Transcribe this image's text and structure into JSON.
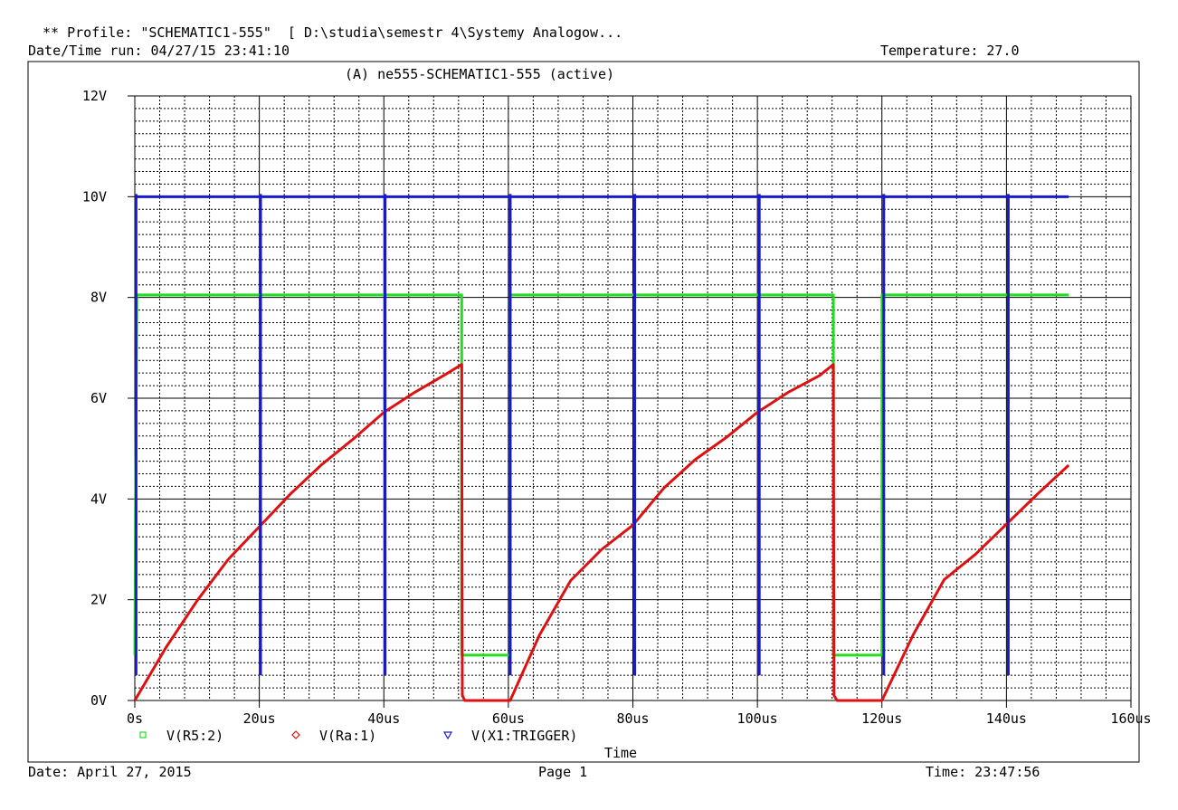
{
  "header": {
    "profile_line": "** Profile: \"SCHEMATIC1-555\"  [ D:\\studia\\semestr 4\\Systemy Analogow...",
    "datetime_run": "Date/Time run: 04/27/15 23:41:10",
    "temperature": "Temperature: 27.0"
  },
  "footer": {
    "date": "Date: April 27, 2015",
    "page": "Page 1",
    "time": "Time: 23:47:56"
  },
  "chart_data": {
    "type": "line",
    "title": "(A) ne555-SCHEMATIC1-555 (active)",
    "xlabel": "Time",
    "ylabel": "",
    "xlim": [
      0,
      160
    ],
    "ylim": [
      0,
      12
    ],
    "x_unit": "us",
    "x_ticks": [
      0,
      20,
      40,
      60,
      80,
      100,
      120,
      140,
      160
    ],
    "x_tick_labels": [
      "0s",
      "20us",
      "40us",
      "60us",
      "80us",
      "100us",
      "120us",
      "140us",
      "160us"
    ],
    "y_ticks": [
      0,
      2,
      4,
      6,
      8,
      10,
      12
    ],
    "y_tick_labels": [
      "0V",
      "2V",
      "4V",
      "6V",
      "8V",
      "10V",
      "12V"
    ],
    "grid": true,
    "legend_position": "bottom-left",
    "series": [
      {
        "name": "V(R5:2)",
        "color": "#22dd22",
        "marker": "square",
        "x": [
          0,
          0.3,
          52.5,
          52.5,
          60.3,
          60.3,
          112.2,
          112.2,
          120.0,
          120.0,
          150
        ],
        "y": [
          0.9,
          8.05,
          8.05,
          0.9,
          0.9,
          8.05,
          8.05,
          0.9,
          0.9,
          8.05,
          8.05
        ]
      },
      {
        "name": "V(Ra:1)",
        "color": "#dd1111",
        "marker": "diamond",
        "x": [
          0,
          5,
          10,
          15,
          20,
          25,
          30,
          35,
          40,
          45,
          50,
          52.5,
          52.6,
          53,
          60.3,
          65,
          70,
          75,
          80,
          85,
          90,
          95,
          100,
          105,
          110,
          112.2,
          112.3,
          112.8,
          120.0,
          125,
          130,
          135,
          140,
          145,
          150
        ],
        "y": [
          0,
          1.05,
          1.98,
          2.8,
          3.45,
          4.1,
          4.68,
          5.18,
          5.72,
          6.12,
          6.48,
          6.67,
          0.1,
          0,
          0,
          1.3,
          2.38,
          3.0,
          3.48,
          4.22,
          4.78,
          5.22,
          5.72,
          6.12,
          6.45,
          6.67,
          0.1,
          0,
          0,
          1.3,
          2.4,
          2.9,
          3.5,
          4.1,
          4.67
        ]
      },
      {
        "name": "V(X1:TRIGGER)",
        "color": "#1a1acc",
        "marker": "triangle-down",
        "base": 10.0,
        "low": 0.5,
        "pulses_x": [
          0.2,
          20.2,
          40.2,
          60.3,
          80.3,
          100.3,
          120.3,
          140.3
        ]
      }
    ]
  }
}
